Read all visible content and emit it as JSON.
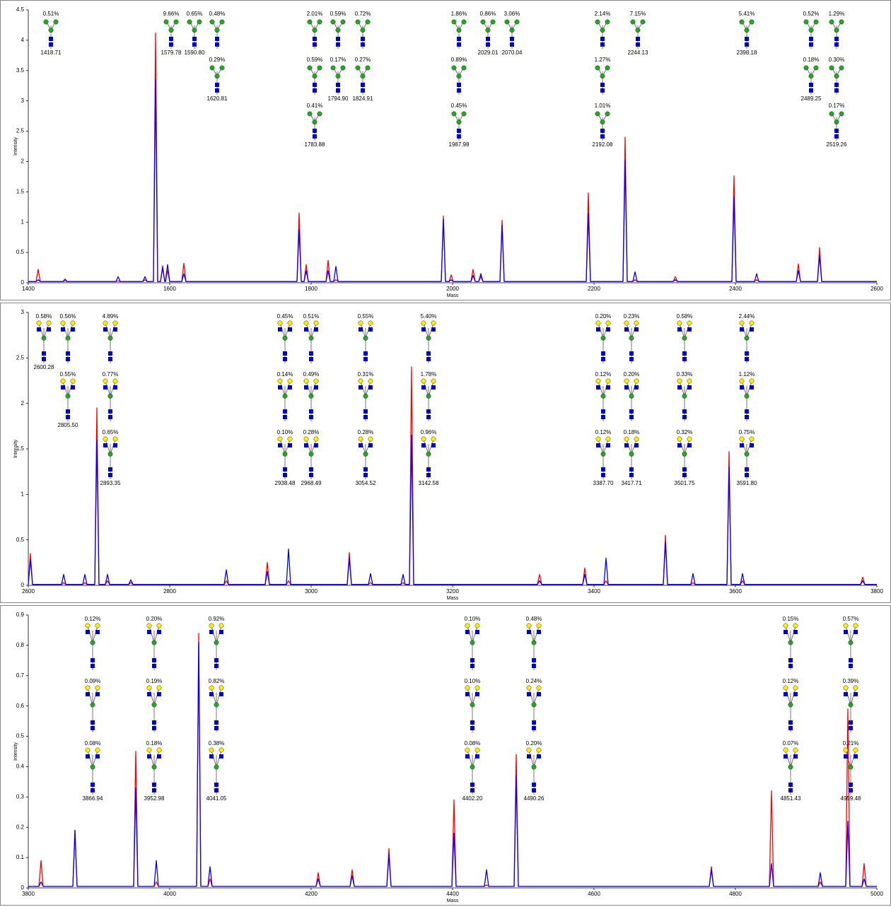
{
  "chart_data": [
    {
      "type": "line",
      "x_label": "Mass",
      "y_label": "Intensity",
      "xlim": [
        1400,
        2600
      ],
      "ylim": [
        0,
        4.5
      ],
      "xticks": [
        1400,
        1600,
        1800,
        2000,
        2200,
        2400,
        2600
      ],
      "yticks": [
        0,
        0.5,
        1,
        1.5,
        2,
        2.5,
        3,
        3.5,
        4,
        4.5
      ],
      "grid": false,
      "x": [
        1400,
        1411,
        1414,
        1417,
        1449,
        1452,
        1455,
        1524,
        1527,
        1530,
        1562,
        1565,
        1568,
        1577,
        1580,
        1583,
        1587,
        1590,
        1593,
        1594,
        1597,
        1600,
        1617,
        1620,
        1623,
        1780,
        1783,
        1786,
        1790,
        1793,
        1796,
        1821,
        1824,
        1827,
        1832,
        1835,
        1838,
        1984,
        1987,
        1990,
        1995,
        1998,
        2001,
        2026,
        2029,
        2032,
        2037,
        2040,
        2043,
        2067,
        2070,
        2073,
        2189,
        2192,
        2195,
        2241,
        2244,
        2247,
        2255,
        2258,
        2261,
        2312,
        2315,
        2318,
        2395,
        2398,
        2401,
        2427,
        2430,
        2433,
        2486,
        2489,
        2492,
        2516,
        2519,
        2522,
        2600
      ],
      "series": [
        {
          "color": "#ff0000",
          "values": [
            0.02,
            0.02,
            0.22,
            0.02,
            0.02,
            0.03,
            0.02,
            0.02,
            0.03,
            0.02,
            0.02,
            0.05,
            0.02,
            0.02,
            4.12,
            0.02,
            0.02,
            0.28,
            0.02,
            0.02,
            0.2,
            0.02,
            0.02,
            0.32,
            0.02,
            0.02,
            1.15,
            0.02,
            0.02,
            0.3,
            0.02,
            0.02,
            0.37,
            0.02,
            0.02,
            0.05,
            0.02,
            0.02,
            1.1,
            0.02,
            0.02,
            0.13,
            0.02,
            0.02,
            0.22,
            0.02,
            0.02,
            0.1,
            0.02,
            0.02,
            1.03,
            0.02,
            0.02,
            1.48,
            0.02,
            0.02,
            2.4,
            0.02,
            0.02,
            0.05,
            0.02,
            0.02,
            0.1,
            0.02,
            0.02,
            1.76,
            0.02,
            0.02,
            0.05,
            0.02,
            0.02,
            0.31,
            0.02,
            0.02,
            0.58,
            0.02,
            0.02
          ]
        },
        {
          "color": "#0000ff",
          "values": [
            0.02,
            0.02,
            0.05,
            0.02,
            0.02,
            0.06,
            0.02,
            0.02,
            0.1,
            0.02,
            0.02,
            0.1,
            0.02,
            0.02,
            3.35,
            0.02,
            0.02,
            0.25,
            0.02,
            0.02,
            0.3,
            0.02,
            0.02,
            0.15,
            0.02,
            0.02,
            0.88,
            0.02,
            0.02,
            0.2,
            0.02,
            0.02,
            0.2,
            0.02,
            0.02,
            0.27,
            0.02,
            0.02,
            1.05,
            0.02,
            0.02,
            0.05,
            0.02,
            0.02,
            0.12,
            0.02,
            0.02,
            0.15,
            0.02,
            0.02,
            0.95,
            0.02,
            0.02,
            1.15,
            0.02,
            0.02,
            2.02,
            0.02,
            0.02,
            0.18,
            0.02,
            0.02,
            0.05,
            0.02,
            0.02,
            1.42,
            0.02,
            0.02,
            0.15,
            0.02,
            0.02,
            0.2,
            0.02,
            0.02,
            0.45,
            0.02,
            0.02
          ]
        }
      ],
      "annotations": [
        {
          "entries": [
            {
              "percent": "0.51%",
              "mass": "1418.71"
            }
          ]
        },
        {
          "entries": [
            {
              "percent": "9.66%",
              "mass": "1579.78"
            }
          ]
        },
        {
          "entries": [
            {
              "percent": "0.65%",
              "mass": "1590.80"
            }
          ]
        },
        {
          "entries": [
            {
              "percent": "0.48%"
            },
            {
              "percent": "0.29%",
              "mass": "1620.81"
            }
          ]
        },
        {
          "entries": [
            {
              "percent": "2.01%"
            },
            {
              "percent": "0.59%"
            },
            {
              "percent": "0.41%",
              "mass": "1783.88"
            }
          ]
        },
        {
          "entries": [
            {
              "percent": "0.59%"
            },
            {
              "percent": "0.17%",
              "mass": "1794.90"
            }
          ]
        },
        {
          "entries": [
            {
              "percent": "0.72%"
            },
            {
              "percent": "0.27%",
              "mass": "1824.91"
            }
          ]
        },
        {
          "entries": [
            {
              "percent": "1.86%"
            },
            {
              "percent": "0.89%"
            },
            {
              "percent": "0.45%",
              "mass": "1987.98"
            }
          ]
        },
        {
          "entries": [
            {
              "percent": "0.86%",
              "mass": "2029.01"
            }
          ]
        },
        {
          "entries": [
            {
              "percent": "3.06%",
              "mass": "2070.04"
            }
          ]
        },
        {
          "entries": [
            {
              "percent": "2.14%"
            },
            {
              "percent": "1.27%"
            },
            {
              "percent": "1.01%",
              "mass": "2192.08"
            }
          ]
        },
        {
          "entries": [
            {
              "percent": "7.15%",
              "mass": "2244.13"
            }
          ]
        },
        {
          "entries": [
            {
              "percent": "5.41%",
              "mass": "2398.18"
            }
          ]
        },
        {
          "entries": [
            {
              "percent": "0.52%"
            },
            {
              "percent": "0.18%",
              "mass": "2489.25"
            }
          ]
        },
        {
          "entries": [
            {
              "percent": "1.29%"
            },
            {
              "percent": "0.30%"
            },
            {
              "percent": "0.17%",
              "mass": "2519.26"
            }
          ]
        }
      ]
    },
    {
      "type": "line",
      "x_label": "Mass",
      "y_label": "Intensity",
      "xlim": [
        2600,
        3800
      ],
      "ylim": [
        0,
        3
      ],
      "xticks": [
        2600,
        2800,
        3000,
        3200,
        3400,
        3600,
        3800
      ],
      "yticks": [
        0,
        0.5,
        1,
        1.5,
        2,
        2.5,
        3
      ],
      "grid": false,
      "x": [
        2600,
        2603,
        2606,
        2647,
        2650,
        2653,
        2677,
        2680,
        2683,
        2694,
        2697,
        2700,
        2709,
        2712,
        2715,
        2742,
        2745,
        2748,
        2877,
        2880,
        2883,
        2935,
        2938,
        2941,
        2965,
        2968,
        2971,
        3051,
        3054,
        3057,
        3081,
        3084,
        3087,
        3127,
        3130,
        3133,
        3139,
        3142,
        3145,
        3320,
        3323,
        3326,
        3384,
        3387,
        3390,
        3414,
        3417,
        3420,
        3498,
        3501,
        3504,
        3537,
        3540,
        3543,
        3588,
        3591,
        3594,
        3607,
        3610,
        3613,
        3777,
        3780,
        3783,
        3800
      ],
      "series": [
        {
          "color": "#ff0000",
          "values": [
            0.01,
            0.35,
            0.01,
            0.01,
            0.03,
            0.01,
            0.01,
            0.03,
            0.01,
            0.01,
            1.95,
            0.01,
            0.01,
            0.05,
            0.01,
            0.01,
            0.03,
            0.01,
            0.01,
            0.05,
            0.01,
            0.01,
            0.25,
            0.01,
            0.01,
            0.05,
            0.01,
            0.01,
            0.36,
            0.01,
            0.01,
            0.03,
            0.01,
            0.01,
            0.03,
            0.01,
            0.01,
            2.4,
            0.01,
            0.01,
            0.12,
            0.01,
            0.01,
            0.19,
            0.01,
            0.01,
            0.05,
            0.01,
            0.01,
            0.55,
            0.01,
            0.01,
            0.03,
            0.01,
            0.01,
            1.47,
            0.01,
            0.01,
            0.05,
            0.01,
            0.01,
            0.09,
            0.01,
            0.01
          ]
        },
        {
          "color": "#0000ff",
          "values": [
            0.01,
            0.28,
            0.01,
            0.01,
            0.12,
            0.01,
            0.01,
            0.12,
            0.01,
            0.01,
            1.6,
            0.01,
            0.01,
            0.12,
            0.01,
            0.01,
            0.06,
            0.01,
            0.01,
            0.17,
            0.01,
            0.01,
            0.15,
            0.01,
            0.01,
            0.4,
            0.01,
            0.01,
            0.3,
            0.01,
            0.01,
            0.13,
            0.01,
            0.01,
            0.12,
            0.01,
            0.01,
            1.65,
            0.01,
            0.01,
            0.05,
            0.01,
            0.01,
            0.12,
            0.01,
            0.01,
            0.3,
            0.01,
            0.01,
            0.47,
            0.01,
            0.01,
            0.13,
            0.01,
            0.01,
            1.3,
            0.01,
            0.01,
            0.13,
            0.01,
            0.01,
            0.05,
            0.01,
            0.01
          ]
        }
      ],
      "annotations": [
        {
          "entries": [
            {
              "percent": "0.58%",
              "mass": "2600.28"
            }
          ]
        },
        {
          "entries": [
            {
              "percent": "0.56%"
            },
            {
              "percent": "0.55%",
              "mass": "2805.50"
            }
          ]
        },
        {
          "entries": [
            {
              "percent": "4.89%"
            },
            {
              "percent": "0.77%"
            },
            {
              "percent": "0.65%",
              "mass": "2893.35"
            }
          ]
        },
        {
          "entries": [
            {
              "percent": "0.45%"
            },
            {
              "percent": "0.14%"
            },
            {
              "percent": "0.10%",
              "mass": "2938.48"
            }
          ]
        },
        {
          "entries": [
            {
              "percent": "0.51%"
            },
            {
              "percent": "0.49%"
            },
            {
              "percent": "0.28%",
              "mass": "2968.49"
            }
          ]
        },
        {
          "entries": [
            {
              "percent": "0.55%"
            },
            {
              "percent": "0.31%"
            },
            {
              "percent": "0.28%",
              "mass": "3054.52"
            }
          ]
        },
        {
          "entries": [
            {
              "percent": "5.40%"
            },
            {
              "percent": "1.78%"
            },
            {
              "percent": "0.96%",
              "mass": "3142.58"
            }
          ]
        },
        {
          "entries": [
            {
              "percent": "0.20%"
            },
            {
              "percent": "0.12%"
            },
            {
              "percent": "0.12%",
              "mass": "3387.70"
            }
          ]
        },
        {
          "entries": [
            {
              "percent": "0.23%"
            },
            {
              "percent": "0.20%"
            },
            {
              "percent": "0.18%",
              "mass": "3417.71"
            }
          ]
        },
        {
          "entries": [
            {
              "percent": "0.58%"
            },
            {
              "percent": "0.33%"
            },
            {
              "percent": "0.32%",
              "mass": "3501.75"
            }
          ]
        },
        {
          "entries": [
            {
              "percent": "2.44%"
            },
            {
              "percent": "1.12%"
            },
            {
              "percent": "0.75%",
              "mass": "3591.80"
            }
          ]
        }
      ]
    },
    {
      "type": "line",
      "x_label": "Mass",
      "y_label": "Intensity",
      "xlim": [
        3800,
        5000
      ],
      "ylim": [
        0,
        0.9
      ],
      "xticks": [
        3800,
        4000,
        4200,
        4400,
        4600,
        4800,
        5000
      ],
      "yticks": [
        0,
        0.1,
        0.2,
        0.3,
        0.4,
        0.5,
        0.6,
        0.7,
        0.8,
        0.9
      ],
      "grid": false,
      "x": [
        3800,
        3815,
        3818,
        3821,
        3863,
        3866,
        3869,
        3949,
        3952,
        3955,
        3978,
        3981,
        3984,
        4038,
        4041,
        4044,
        4054,
        4057,
        4060,
        4207,
        4210,
        4213,
        4255,
        4258,
        4261,
        4307,
        4310,
        4313,
        4399,
        4402,
        4405,
        4445,
        4448,
        4451,
        4487,
        4490,
        4493,
        4763,
        4766,
        4769,
        4848,
        4851,
        4854,
        4917,
        4920,
        4923,
        4956,
        4959,
        4962,
        4979,
        4982,
        4985,
        5000
      ],
      "series": [
        {
          "color": "#ff0000",
          "values": [
            0.005,
            0.005,
            0.09,
            0.005,
            0.005,
            0.19,
            0.005,
            0.005,
            0.45,
            0.005,
            0.005,
            0.02,
            0.005,
            0.005,
            0.84,
            0.005,
            0.005,
            0.03,
            0.005,
            0.005,
            0.05,
            0.005,
            0.005,
            0.06,
            0.005,
            0.005,
            0.13,
            0.005,
            0.005,
            0.29,
            0.005,
            0.005,
            0.01,
            0.005,
            0.005,
            0.44,
            0.005,
            0.005,
            0.07,
            0.005,
            0.005,
            0.32,
            0.005,
            0.005,
            0.02,
            0.005,
            0.005,
            0.59,
            0.005,
            0.005,
            0.08,
            0.005,
            0.005
          ]
        },
        {
          "color": "#0000ff",
          "values": [
            0.005,
            0.005,
            0.02,
            0.005,
            0.005,
            0.19,
            0.005,
            0.005,
            0.33,
            0.005,
            0.005,
            0.09,
            0.005,
            0.005,
            0.81,
            0.005,
            0.005,
            0.07,
            0.005,
            0.005,
            0.03,
            0.005,
            0.005,
            0.04,
            0.005,
            0.005,
            0.11,
            0.005,
            0.005,
            0.18,
            0.005,
            0.005,
            0.06,
            0.005,
            0.005,
            0.37,
            0.005,
            0.005,
            0.06,
            0.005,
            0.005,
            0.08,
            0.005,
            0.005,
            0.05,
            0.005,
            0.005,
            0.22,
            0.005,
            0.005,
            0.03,
            0.005,
            0.005
          ]
        }
      ],
      "annotations": [
        {
          "entries": [
            {
              "percent": "0.12%"
            },
            {
              "percent": "0.09%"
            },
            {
              "percent": "0.08%",
              "mass": "3866.94"
            }
          ]
        },
        {
          "entries": [
            {
              "percent": "0.20%"
            },
            {
              "percent": "0.19%"
            },
            {
              "percent": "0.18%",
              "mass": "3952.98"
            }
          ]
        },
        {
          "entries": [
            {
              "percent": "0.92%"
            },
            {
              "percent": "0.82%"
            },
            {
              "percent": "0.38%",
              "mass": "4041.05"
            }
          ]
        },
        {
          "entries": [
            {
              "percent": "0.10%"
            },
            {
              "percent": "0.10%"
            },
            {
              "percent": "0.08%",
              "mass": "4402.20"
            }
          ]
        },
        {
          "entries": [
            {
              "percent": "0.48%"
            },
            {
              "percent": "0.24%"
            },
            {
              "percent": "0.20%",
              "mass": "4490.26"
            }
          ]
        },
        {
          "entries": [
            {
              "percent": "0.15%"
            },
            {
              "percent": "0.12%"
            },
            {
              "percent": "0.07%",
              "mass": "4851.43"
            }
          ]
        },
        {
          "entries": [
            {
              "percent": "0.57%"
            },
            {
              "percent": "0.39%"
            },
            {
              "percent": "0.21%",
              "mass": "4959.48"
            }
          ]
        }
      ]
    }
  ]
}
